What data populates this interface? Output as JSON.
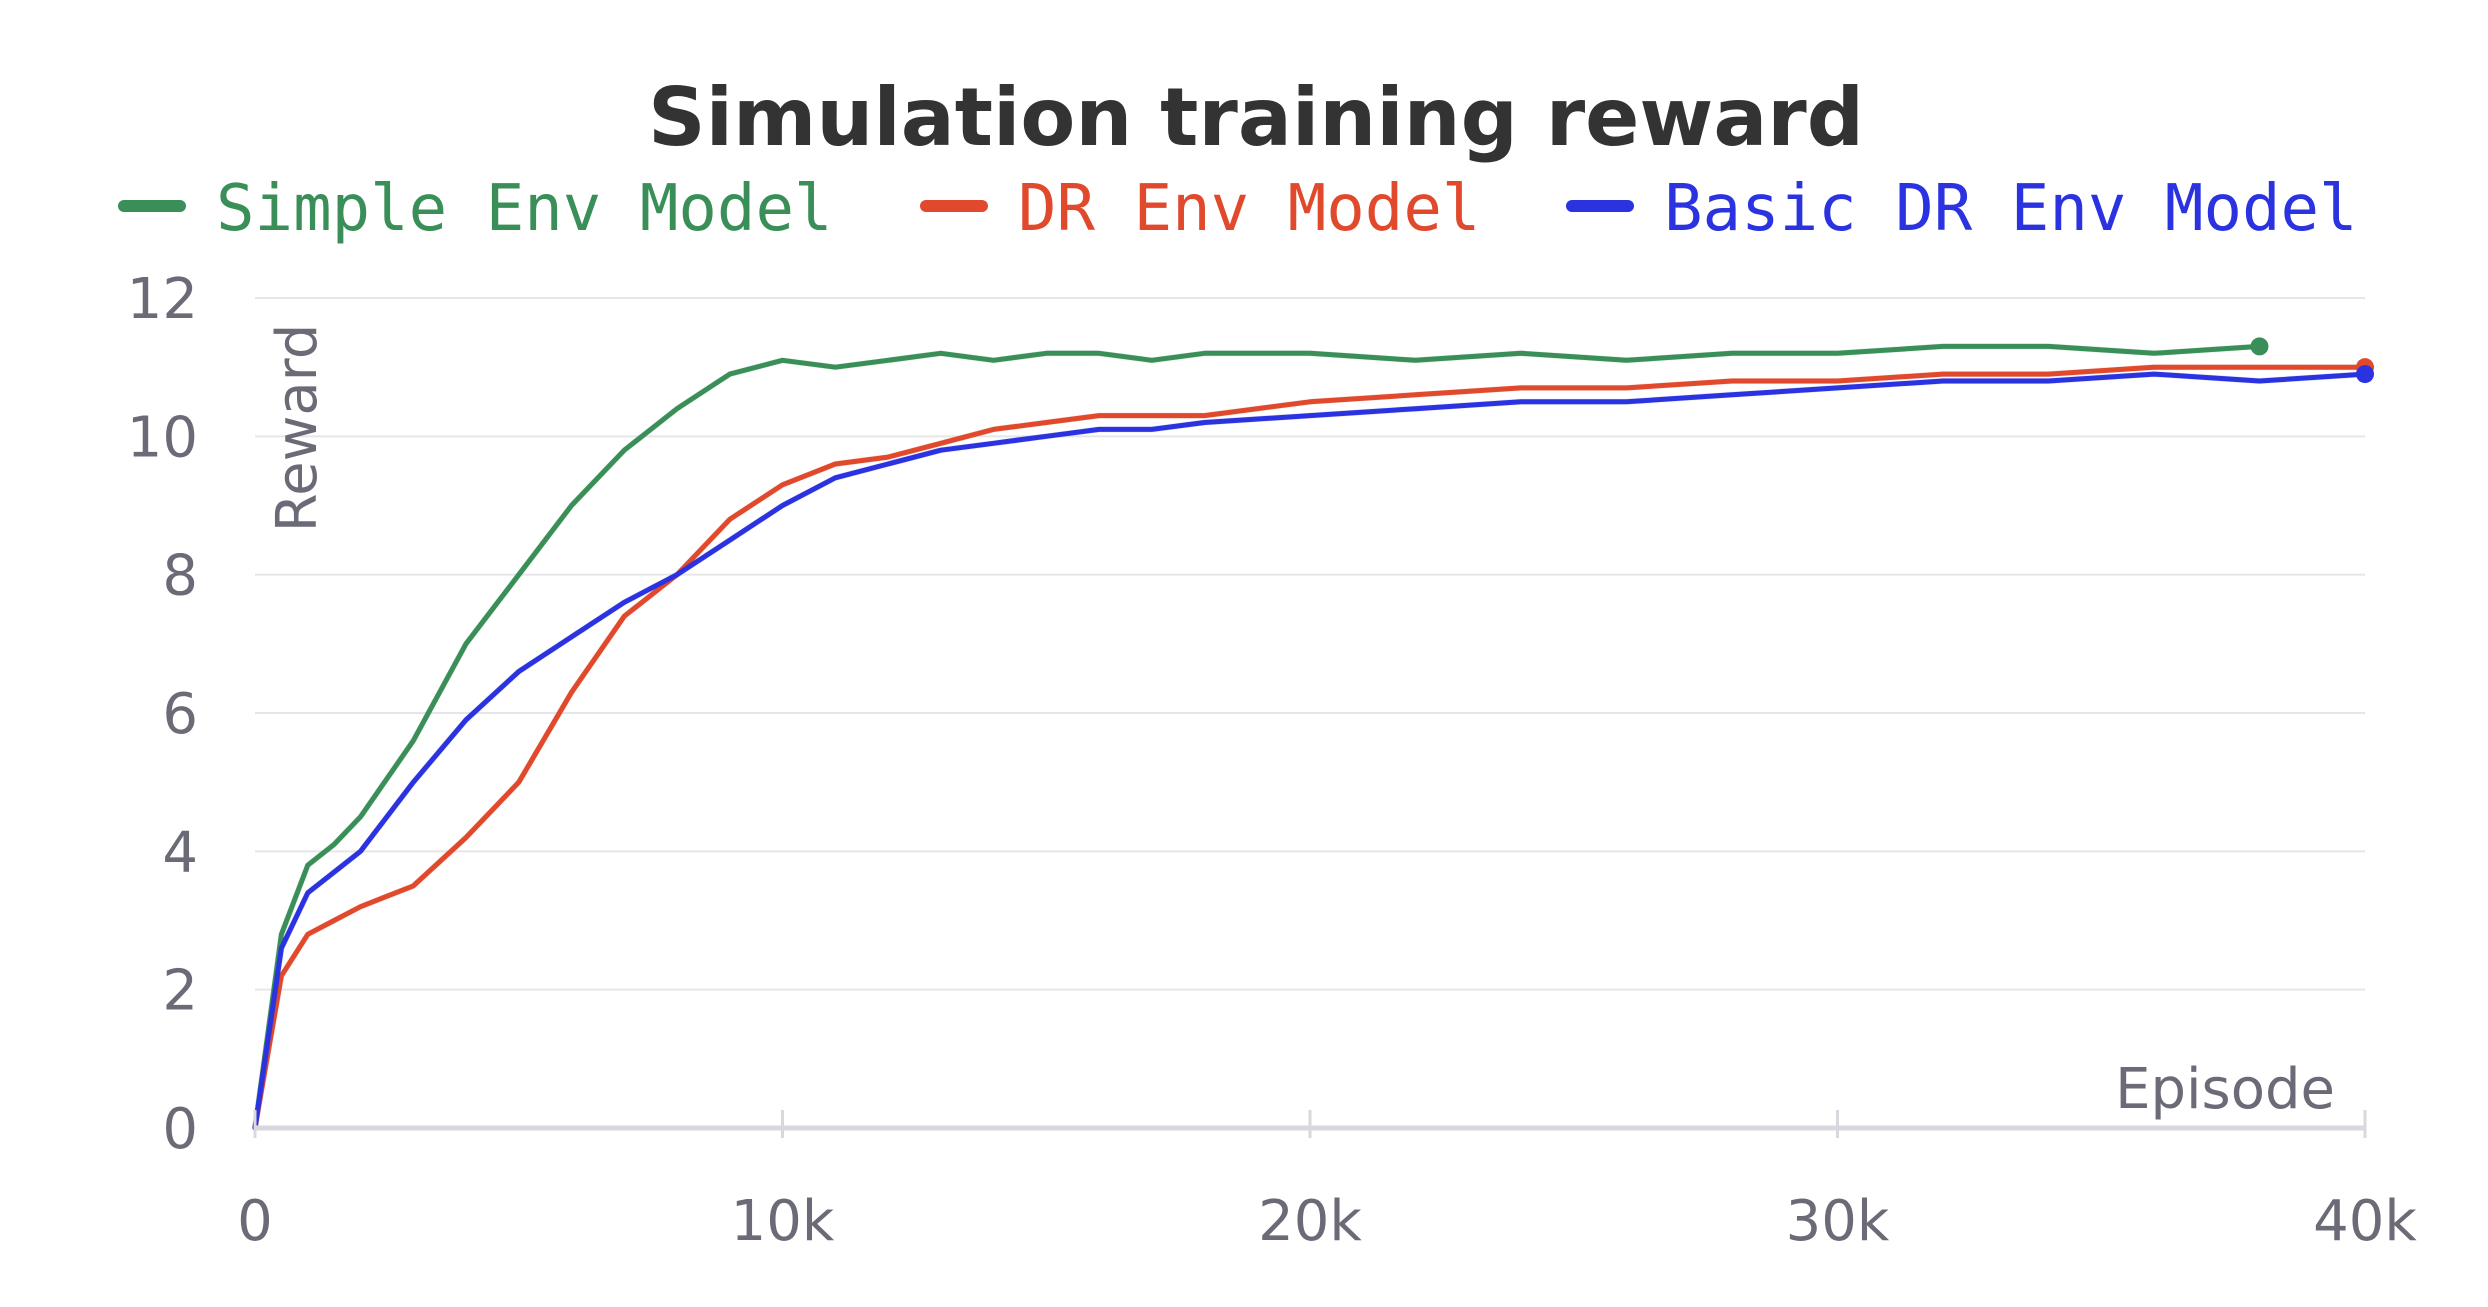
{
  "chart_data": {
    "type": "line",
    "title": "Simulation training reward",
    "xlabel": "Episode",
    "ylabel": "Reward",
    "xlim": [
      0,
      40000
    ],
    "ylim": [
      0,
      12
    ],
    "xticks": [
      0,
      10000,
      20000,
      30000,
      40000
    ],
    "xtick_labels": [
      "0",
      "10k",
      "20k",
      "30k",
      "40k"
    ],
    "yticks": [
      0,
      2,
      4,
      6,
      8,
      10,
      12
    ],
    "ytick_labels": [
      "0",
      "2",
      "4",
      "6",
      "8",
      "10",
      "12"
    ],
    "grid": true,
    "legend_position": "top",
    "series": [
      {
        "name": "Simple Env Model",
        "color": "#3a8f58",
        "x": [
          0,
          500,
          1000,
          1500,
          2000,
          3000,
          4000,
          5000,
          6000,
          7000,
          8000,
          9000,
          10000,
          11000,
          12000,
          13000,
          14000,
          15000,
          16000,
          17000,
          18000,
          20000,
          22000,
          24000,
          26000,
          28000,
          30000,
          32000,
          34000,
          36000,
          38000
        ],
        "y": [
          0,
          2.8,
          3.8,
          4.1,
          4.5,
          5.6,
          7.0,
          8.0,
          9.0,
          9.8,
          10.4,
          10.9,
          11.1,
          11.0,
          11.1,
          11.2,
          11.1,
          11.2,
          11.2,
          11.1,
          11.2,
          11.2,
          11.1,
          11.2,
          11.1,
          11.2,
          11.2,
          11.3,
          11.3,
          11.2,
          11.3
        ]
      },
      {
        "name": "DR Env Model",
        "color": "#e0492c",
        "x": [
          0,
          500,
          1000,
          1500,
          2000,
          3000,
          4000,
          5000,
          6000,
          7000,
          8000,
          9000,
          10000,
          11000,
          12000,
          13000,
          14000,
          15000,
          16000,
          17000,
          18000,
          20000,
          22000,
          24000,
          26000,
          28000,
          30000,
          32000,
          34000,
          36000,
          38000,
          40000
        ],
        "y": [
          0,
          2.2,
          2.8,
          3.0,
          3.2,
          3.5,
          4.2,
          5.0,
          6.3,
          7.4,
          8.0,
          8.8,
          9.3,
          9.6,
          9.7,
          9.9,
          10.1,
          10.2,
          10.3,
          10.3,
          10.3,
          10.5,
          10.6,
          10.7,
          10.7,
          10.8,
          10.8,
          10.9,
          10.9,
          11.0,
          11.0,
          11.0
        ]
      },
      {
        "name": "Basic DR Env Model",
        "color": "#2b33e0",
        "x": [
          0,
          500,
          1000,
          1500,
          2000,
          3000,
          4000,
          5000,
          6000,
          7000,
          8000,
          9000,
          10000,
          11000,
          12000,
          13000,
          14000,
          15000,
          16000,
          17000,
          18000,
          20000,
          22000,
          24000,
          26000,
          28000,
          30000,
          32000,
          34000,
          36000,
          38000,
          40000
        ],
        "y": [
          0,
          2.6,
          3.4,
          3.7,
          4.0,
          5.0,
          5.9,
          6.6,
          7.1,
          7.6,
          8.0,
          8.5,
          9.0,
          9.4,
          9.6,
          9.8,
          9.9,
          10.0,
          10.1,
          10.1,
          10.2,
          10.3,
          10.4,
          10.5,
          10.5,
          10.6,
          10.7,
          10.8,
          10.8,
          10.9,
          10.8,
          10.9
        ]
      }
    ]
  }
}
